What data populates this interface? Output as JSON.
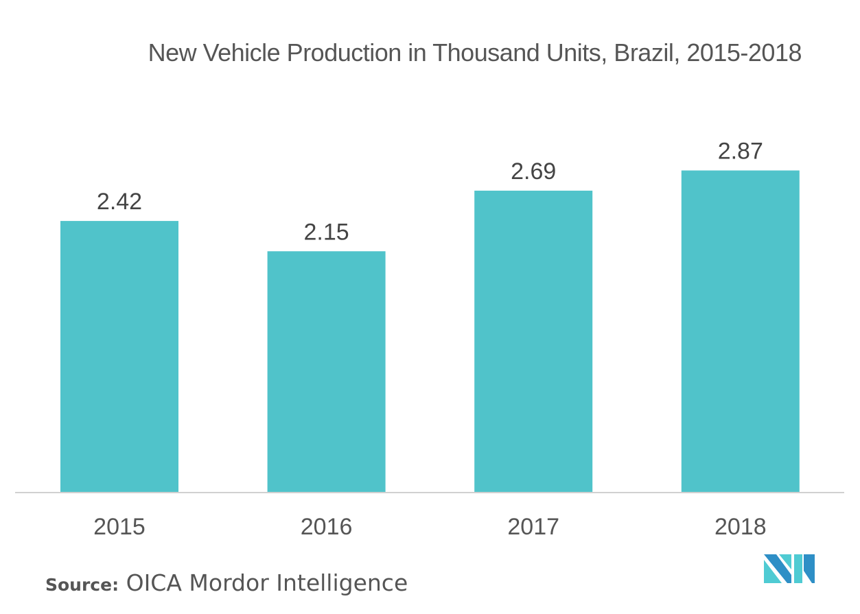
{
  "chart_data": {
    "type": "bar",
    "title": "New Vehicle Production in Thousand Units, Brazil, 2015-2018",
    "categories": [
      "2015",
      "2016",
      "2017",
      "2018"
    ],
    "values": [
      2.42,
      2.15,
      2.69,
      2.87
    ],
    "value_labels": [
      "2.42",
      "2.15",
      "2.69",
      "2.87"
    ],
    "xlabel": "",
    "ylabel": "",
    "ylim": [
      0,
      3.3
    ],
    "grid": false,
    "legend": "none",
    "bar_color": "#50C3CA"
  },
  "source": {
    "key": "Source:",
    "value": "OICA Mordor Intelligence"
  },
  "logo": {
    "name": "mordor-intelligence-logo",
    "colors": [
      "#2E8FC6",
      "#4FCBD3"
    ]
  }
}
